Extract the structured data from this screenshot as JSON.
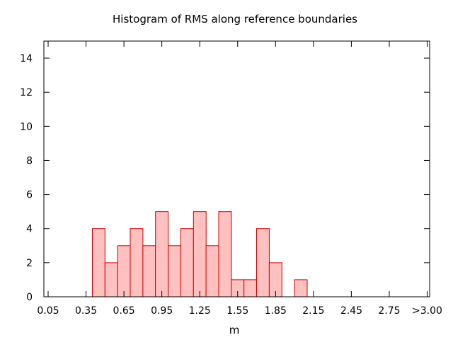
{
  "chart_data": {
    "type": "bar",
    "title": "Histogram of RMS along reference boundaries",
    "xlabel": "m",
    "ylabel": "",
    "x_tick_labels": [
      "0.05",
      "0.35",
      "0.65",
      "0.95",
      "1.25",
      "1.55",
      "1.85",
      "2.15",
      "2.45",
      "2.75",
      ">3.00"
    ],
    "y_tick_labels": [
      "0",
      "2",
      "4",
      "6",
      "8",
      "10",
      "12",
      "14"
    ],
    "ylim": [
      0,
      15
    ],
    "xlim": [
      0.0,
      3.0
    ],
    "bin_width": 0.1,
    "bins": [
      {
        "x": 0.45,
        "value": 4
      },
      {
        "x": 0.55,
        "value": 2
      },
      {
        "x": 0.65,
        "value": 3
      },
      {
        "x": 0.75,
        "value": 4
      },
      {
        "x": 0.85,
        "value": 3
      },
      {
        "x": 0.95,
        "value": 5
      },
      {
        "x": 1.05,
        "value": 3
      },
      {
        "x": 1.15,
        "value": 4
      },
      {
        "x": 1.25,
        "value": 5
      },
      {
        "x": 1.35,
        "value": 3
      },
      {
        "x": 1.45,
        "value": 5
      },
      {
        "x": 1.55,
        "value": 1
      },
      {
        "x": 1.65,
        "value": 1
      },
      {
        "x": 1.75,
        "value": 4
      },
      {
        "x": 1.85,
        "value": 2
      },
      {
        "x": 2.05,
        "value": 1
      }
    ],
    "grid": false,
    "bar_fill": "#ffc0c0",
    "bar_stroke": "#cc0000"
  }
}
